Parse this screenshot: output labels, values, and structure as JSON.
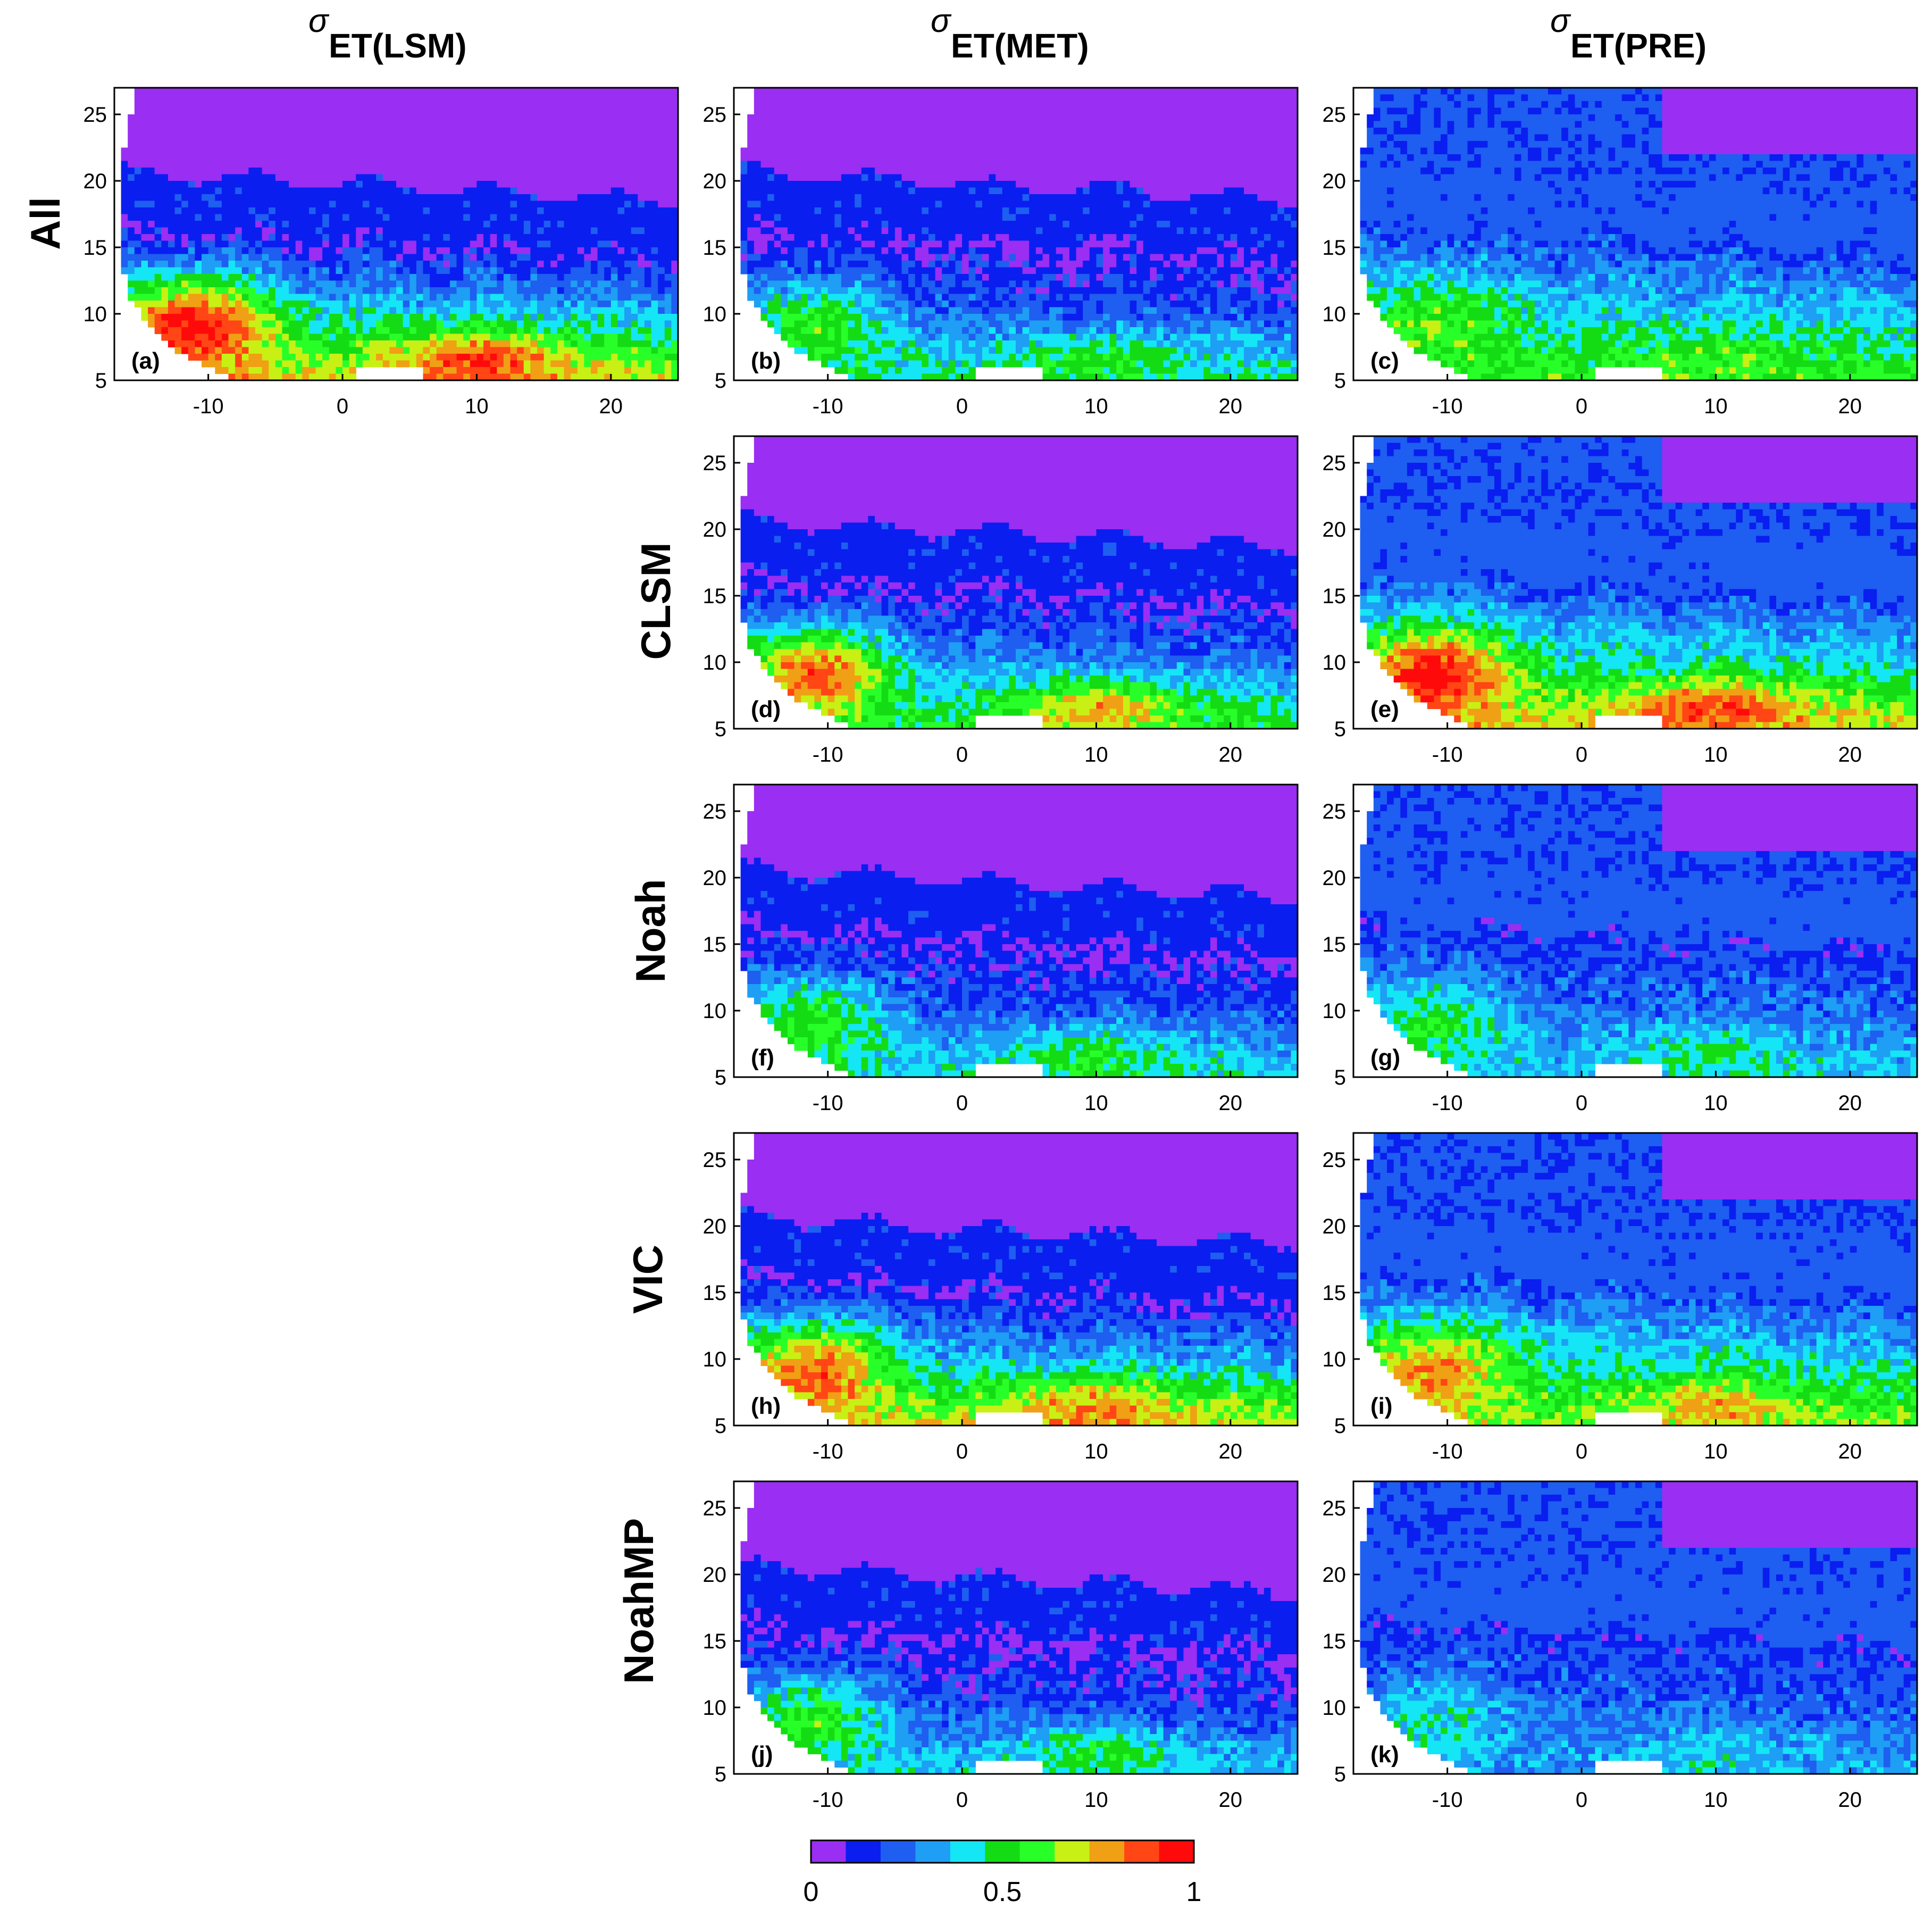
{
  "figure": {
    "column_titles": [
      {
        "sigma": "σ",
        "sub": "ET(LSM)"
      },
      {
        "sigma": "σ",
        "sub": "ET(MET)"
      },
      {
        "sigma": "σ",
        "sub": "ET(PRE)"
      }
    ],
    "row_labels": [
      "All",
      "CLSM",
      "Noah",
      "VIC",
      "NoahMP"
    ]
  },
  "chart_data": {
    "type": "heatmap",
    "description_type": "map panels of ensemble ET standard deviation",
    "xticks": [
      "-10",
      "0",
      "10",
      "20"
    ],
    "yticks": [
      "25",
      "20",
      "15",
      "10",
      "5"
    ],
    "xlim": [
      -17,
      25
    ],
    "ylim": [
      5,
      27
    ],
    "colorbar": {
      "ticks": [
        "0",
        "0.5",
        "1"
      ],
      "range": [
        0,
        1
      ],
      "bins": 10,
      "colors": [
        "#9a2ef2",
        "#0a1ef0",
        "#1e5ef0",
        "#1e9ef5",
        "#14e6f5",
        "#14dc14",
        "#28ff28",
        "#c8f014",
        "#f0a014",
        "#ff4614",
        "#ff0a0a"
      ]
    },
    "panels": [
      {
        "label": "(a)",
        "row": 0,
        "col": 0,
        "profile": [
          0.7,
          0.55,
          0.35,
          0.05
        ],
        "south_peak": 0.95
      },
      {
        "label": "(b)",
        "row": 0,
        "col": 1,
        "profile": [
          0.45,
          0.35,
          0.18,
          0.05
        ],
        "south_peak": 0.55
      },
      {
        "label": "(c)",
        "row": 0,
        "col": 2,
        "profile": [
          0.55,
          0.48,
          0.35,
          0.15
        ],
        "south_peak": 0.6
      },
      {
        "label": "(d)",
        "row": 1,
        "col": 1,
        "profile": [
          0.5,
          0.4,
          0.25,
          0.05
        ],
        "south_peak": 0.85
      },
      {
        "label": "(e)",
        "row": 1,
        "col": 2,
        "profile": [
          0.7,
          0.58,
          0.4,
          0.15
        ],
        "south_peak": 0.95
      },
      {
        "label": "(f)",
        "row": 2,
        "col": 1,
        "profile": [
          0.4,
          0.3,
          0.18,
          0.05
        ],
        "south_peak": 0.55
      },
      {
        "label": "(g)",
        "row": 2,
        "col": 2,
        "profile": [
          0.35,
          0.3,
          0.22,
          0.12
        ],
        "south_peak": 0.5
      },
      {
        "label": "(h)",
        "row": 3,
        "col": 1,
        "profile": [
          0.7,
          0.55,
          0.3,
          0.05
        ],
        "south_peak": 0.85
      },
      {
        "label": "(i)",
        "row": 3,
        "col": 2,
        "profile": [
          0.62,
          0.5,
          0.38,
          0.15
        ],
        "south_peak": 0.8
      },
      {
        "label": "(j)",
        "row": 4,
        "col": 1,
        "profile": [
          0.35,
          0.22,
          0.15,
          0.05
        ],
        "south_peak": 0.55
      },
      {
        "label": "(k)",
        "row": 4,
        "col": 2,
        "profile": [
          0.3,
          0.25,
          0.2,
          0.12
        ],
        "south_peak": 0.4
      }
    ]
  }
}
